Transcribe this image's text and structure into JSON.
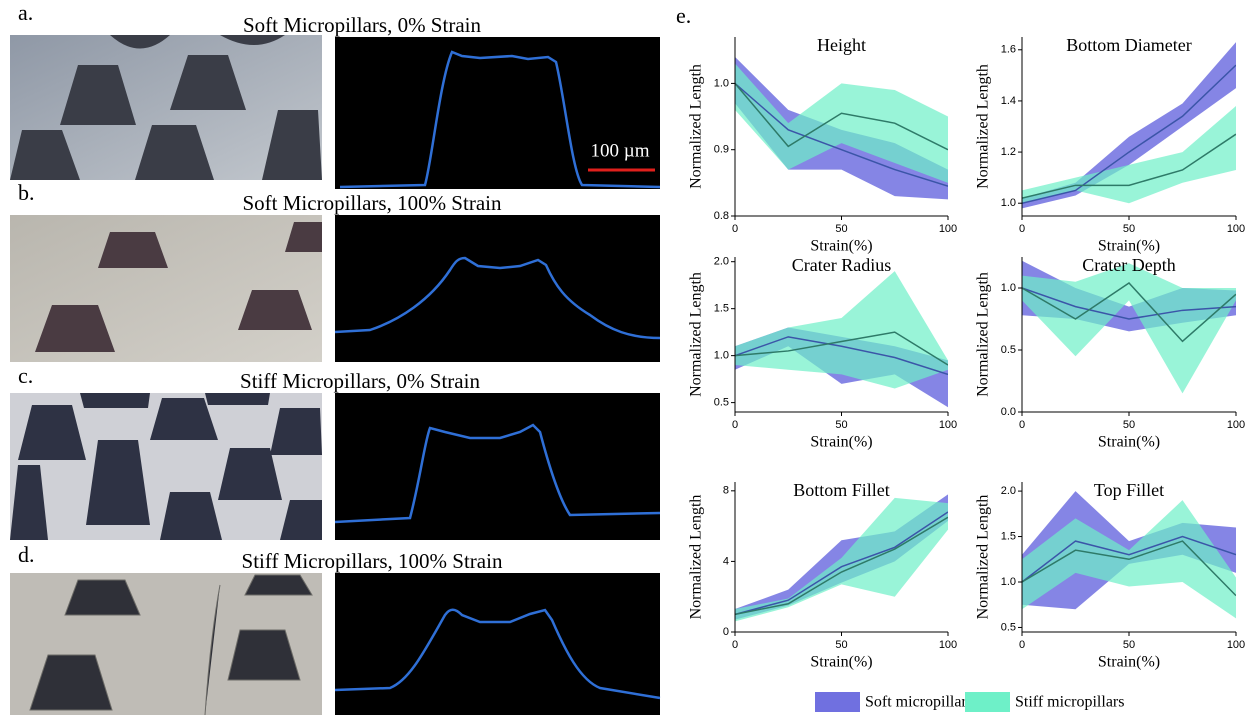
{
  "panels": [
    {
      "label": "a.",
      "title": "Soft Micropillars, 0% Strain"
    },
    {
      "label": "b.",
      "title": "Soft Micropillars, 100% Strain"
    },
    {
      "label": "c.",
      "title": "Stiff Micropillars, 0% Strain"
    },
    {
      "label": "d.",
      "title": "Stiff Micropillars, 100% Strain"
    }
  ],
  "scale_bar": "100 µm",
  "chart_panel_label": "e.",
  "legend": [
    {
      "name": "Soft micropillars",
      "color": "#7070e0"
    },
    {
      "name": "Stiff micropillars",
      "color": "#6ef0c8"
    }
  ],
  "chart_data": [
    {
      "type": "line",
      "title": "Height",
      "x_label": "Strain(%)",
      "y_label": "Normalized Length",
      "x": [
        0,
        25,
        50,
        75,
        100
      ],
      "xlim": [
        0,
        100
      ],
      "xticks": [
        0,
        50,
        100
      ],
      "ylim": [
        0.8,
        1.07
      ],
      "yticks": [
        0.8,
        0.9,
        {
          "value": 1.0,
          "label": "1.0"
        }
      ],
      "series": [
        {
          "color": "#3b55a8",
          "band_color": "#7070e0",
          "values": [
            1.0,
            0.93,
            0.9,
            0.87,
            0.845
          ],
          "lower": [
            0.97,
            0.87,
            0.87,
            0.83,
            0.825
          ],
          "upper": [
            1.04,
            0.96,
            0.93,
            0.91,
            0.87
          ]
        },
        {
          "color": "#2e7a68",
          "band_color": "#6ef0c8",
          "values": [
            1.0,
            0.905,
            0.955,
            0.94,
            0.9
          ],
          "lower": [
            0.96,
            0.87,
            0.91,
            0.88,
            0.85
          ],
          "upper": [
            1.03,
            0.94,
            1.0,
            0.99,
            0.95
          ]
        }
      ]
    },
    {
      "type": "line",
      "title": "Bottom Diameter",
      "x_label": "Strain(%)",
      "y_label": "Normalized Length",
      "x": [
        0,
        25,
        50,
        75,
        100
      ],
      "xlim": [
        0,
        100
      ],
      "xticks": [
        0,
        50,
        100
      ],
      "ylim": [
        0.95,
        1.65
      ],
      "yticks": [
        {
          "value": 1.0,
          "label": "1.0"
        },
        1.2,
        1.4,
        1.6
      ],
      "series": [
        {
          "color": "#3b55a8",
          "band_color": "#7070e0",
          "values": [
            1.0,
            1.05,
            1.2,
            1.34,
            1.54
          ],
          "lower": [
            0.98,
            1.03,
            1.15,
            1.3,
            1.45
          ],
          "upper": [
            1.02,
            1.08,
            1.26,
            1.39,
            1.63
          ]
        },
        {
          "color": "#2e7a68",
          "band_color": "#6ef0c8",
          "values": [
            1.02,
            1.07,
            1.07,
            1.13,
            1.27
          ],
          "lower": [
            1.0,
            1.05,
            1.0,
            1.08,
            1.13
          ],
          "upper": [
            1.05,
            1.1,
            1.15,
            1.2,
            1.38
          ]
        }
      ]
    },
    {
      "type": "line",
      "title": "Crater Radius",
      "x_label": "Strain(%)",
      "y_label": "Normalized Length",
      "x": [
        0,
        25,
        50,
        75,
        100
      ],
      "xlim": [
        0,
        100
      ],
      "xticks": [
        0,
        50,
        100
      ],
      "ylim": [
        0.4,
        2.05
      ],
      "yticks": [
        0.5,
        {
          "value": 1.0,
          "label": "1.0"
        },
        1.5,
        {
          "value": 2.0,
          "label": "2.0"
        }
      ],
      "series": [
        {
          "color": "#3b55a8",
          "band_color": "#7070e0",
          "values": [
            1.0,
            1.2,
            1.1,
            0.98,
            0.8
          ],
          "lower": [
            0.85,
            1.1,
            0.7,
            0.8,
            0.45
          ],
          "upper": [
            1.1,
            1.3,
            1.2,
            1.1,
            0.95
          ]
        },
        {
          "color": "#2e7a68",
          "band_color": "#6ef0c8",
          "values": [
            1.0,
            1.05,
            1.15,
            1.25,
            0.9
          ],
          "lower": [
            0.9,
            0.85,
            0.8,
            0.65,
            0.85
          ],
          "upper": [
            1.1,
            1.3,
            1.4,
            1.9,
            0.95
          ]
        }
      ]
    },
    {
      "type": "line",
      "title": "Crater Depth",
      "x_label": "Strain(%)",
      "y_label": "Normalized Length",
      "x": [
        0,
        25,
        50,
        75,
        100
      ],
      "xlim": [
        0,
        100
      ],
      "xticks": [
        0,
        50,
        100
      ],
      "ylim": [
        0,
        1.25
      ],
      "yticks": [
        {
          "value": 0,
          "label": "0.0"
        },
        0.5,
        {
          "value": 1.0,
          "label": "1.0"
        }
      ],
      "series": [
        {
          "color": "#3b55a8",
          "band_color": "#7070e0",
          "values": [
            1.0,
            0.85,
            0.75,
            0.82,
            0.85
          ],
          "lower": [
            0.78,
            0.75,
            0.65,
            0.72,
            0.78
          ],
          "upper": [
            1.22,
            1.0,
            0.85,
            1.0,
            0.98
          ]
        },
        {
          "color": "#2e7a68",
          "band_color": "#6ef0c8",
          "values": [
            1.0,
            0.75,
            1.04,
            0.57,
            0.95
          ],
          "lower": [
            0.9,
            0.45,
            0.9,
            0.15,
            0.9
          ],
          "upper": [
            1.1,
            1.05,
            1.2,
            1.0,
            1.0
          ]
        }
      ]
    },
    {
      "type": "line",
      "title": "Bottom Fillet",
      "x_label": "Strain(%)",
      "y_label": "Normalized Length",
      "x": [
        0,
        25,
        50,
        75,
        100
      ],
      "xlim": [
        0,
        100
      ],
      "xticks": [
        0,
        50,
        100
      ],
      "ylim": [
        0,
        8.5
      ],
      "yticks": [
        0,
        4,
        8
      ],
      "series": [
        {
          "color": "#3b55a8",
          "band_color": "#7070e0",
          "values": [
            1,
            1.8,
            3.7,
            4.8,
            6.8
          ],
          "lower": [
            0.7,
            1.5,
            2.8,
            4,
            6.3
          ],
          "upper": [
            1.3,
            2.4,
            5.2,
            5.7,
            7.8
          ]
        },
        {
          "color": "#2e7a68",
          "band_color": "#6ef0c8",
          "values": [
            1,
            1.6,
            3.4,
            4.7,
            6.5
          ],
          "lower": [
            0.6,
            1.4,
            2.7,
            2,
            5.8
          ],
          "upper": [
            1.3,
            1.9,
            4.2,
            7.6,
            7.3
          ]
        }
      ]
    },
    {
      "type": "line",
      "title": "Top Fillet",
      "x_label": "Strain(%)",
      "y_label": "Normalized Length",
      "x": [
        0,
        25,
        50,
        75,
        100
      ],
      "xlim": [
        0,
        100
      ],
      "xticks": [
        0,
        50,
        100
      ],
      "ylim": [
        0.45,
        2.1
      ],
      "yticks": [
        0.5,
        {
          "value": 1.0,
          "label": "1.0"
        },
        1.5,
        {
          "value": 2.0,
          "label": "2.0"
        }
      ],
      "series": [
        {
          "color": "#3b55a8",
          "band_color": "#7070e0",
          "values": [
            1.0,
            1.45,
            1.3,
            1.5,
            1.3
          ],
          "lower": [
            0.75,
            0.7,
            1.2,
            1.3,
            1.1
          ],
          "upper": [
            1.3,
            2.0,
            1.45,
            1.65,
            1.6
          ]
        },
        {
          "color": "#2e7a68",
          "band_color": "#6ef0c8",
          "values": [
            1.0,
            1.35,
            1.25,
            1.45,
            0.85
          ],
          "lower": [
            0.7,
            1.1,
            0.95,
            1.0,
            0.6
          ],
          "upper": [
            1.25,
            1.7,
            1.35,
            1.9,
            1.05
          ]
        }
      ]
    }
  ]
}
